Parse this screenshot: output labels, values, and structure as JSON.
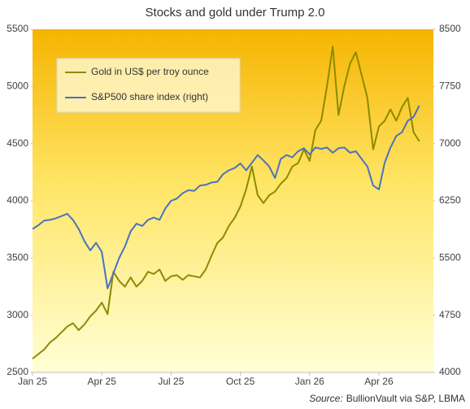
{
  "chart_data": {
    "type": "line",
    "title": "Stocks and gold under Trump 2.0",
    "source_label": "Source:",
    "source": "BullionVault via S&P, LBMA",
    "x": [
      0,
      0.25,
      0.5,
      0.75,
      1,
      1.25,
      1.5,
      1.75,
      2,
      2.25,
      2.5,
      2.75,
      3,
      3.25,
      3.5,
      3.75,
      4,
      4.25,
      4.5,
      4.75,
      5,
      5.25,
      5.5,
      5.75,
      6,
      6.25,
      6.5,
      6.75,
      7,
      7.25,
      7.5,
      7.75,
      8,
      8.25,
      8.5,
      8.75,
      9,
      9.25,
      9.5,
      9.75,
      10,
      10.25,
      10.5,
      10.75,
      11,
      11.25,
      11.5,
      11.75,
      12,
      12.25,
      12.5,
      12.75,
      13,
      13.25,
      13.5,
      13.75,
      14,
      14.25,
      14.5,
      14.75,
      15,
      15.25,
      15.5,
      15.75,
      16,
      16.25,
      16.5,
      16.75
    ],
    "xlim": [
      0,
      17.36
    ],
    "xticks": [
      {
        "value": 0,
        "label": "Jan 25"
      },
      {
        "value": 3,
        "label": "Apr 25"
      },
      {
        "value": 6,
        "label": "Jul 25"
      },
      {
        "value": 9,
        "label": "Oct 25"
      },
      {
        "value": 12,
        "label": "Jan 26"
      },
      {
        "value": 15,
        "label": "Apr 26"
      }
    ],
    "ylim": [
      2500,
      5500
    ],
    "yticks": [
      2500,
      3000,
      3500,
      4000,
      4500,
      5000,
      5500
    ],
    "y2lim": [
      4000,
      8500
    ],
    "y2ticks": [
      4000,
      4750,
      5500,
      6250,
      7000,
      7750,
      8500
    ],
    "grid": false,
    "legend": "top-left",
    "series": [
      {
        "name": "Gold in US$ per troy ounce",
        "color": "#8c8a00",
        "values": [
          2620,
          2660,
          2700,
          2760,
          2800,
          2850,
          2900,
          2930,
          2870,
          2920,
          2990,
          3040,
          3110,
          3010,
          3380,
          3300,
          3250,
          3330,
          3250,
          3300,
          3380,
          3360,
          3400,
          3300,
          3340,
          3350,
          3310,
          3350,
          3340,
          3330,
          3400,
          3520,
          3630,
          3680,
          3780,
          3850,
          3950,
          4100,
          4300,
          4050,
          3980,
          4050,
          4080,
          4150,
          4200,
          4300,
          4330,
          4450,
          4350,
          4620,
          4700,
          5000,
          5350,
          4750,
          5000,
          5200,
          5300,
          5100,
          4900,
          4450,
          4650,
          4700,
          4800,
          4700,
          4820,
          4900,
          4600,
          4520
        ]
      },
      {
        "name": "S&P500 share index (right)",
        "color": "#4a72c2",
        "axis": "y2",
        "values": [
          5880,
          5930,
          5990,
          6000,
          6020,
          6050,
          6080,
          6000,
          5880,
          5720,
          5600,
          5700,
          5580,
          5100,
          5300,
          5500,
          5650,
          5850,
          5950,
          5920,
          6000,
          6030,
          6000,
          6150,
          6250,
          6280,
          6350,
          6390,
          6380,
          6450,
          6460,
          6490,
          6500,
          6600,
          6650,
          6680,
          6740,
          6650,
          6750,
          6850,
          6780,
          6700,
          6550,
          6800,
          6850,
          6820,
          6900,
          6940,
          6860,
          6950,
          6930,
          6950,
          6880,
          6940,
          6950,
          6880,
          6900,
          6800,
          6700,
          6450,
          6400,
          6750,
          6950,
          7100,
          7150,
          7300,
          7350,
          7500
        ]
      }
    ]
  }
}
